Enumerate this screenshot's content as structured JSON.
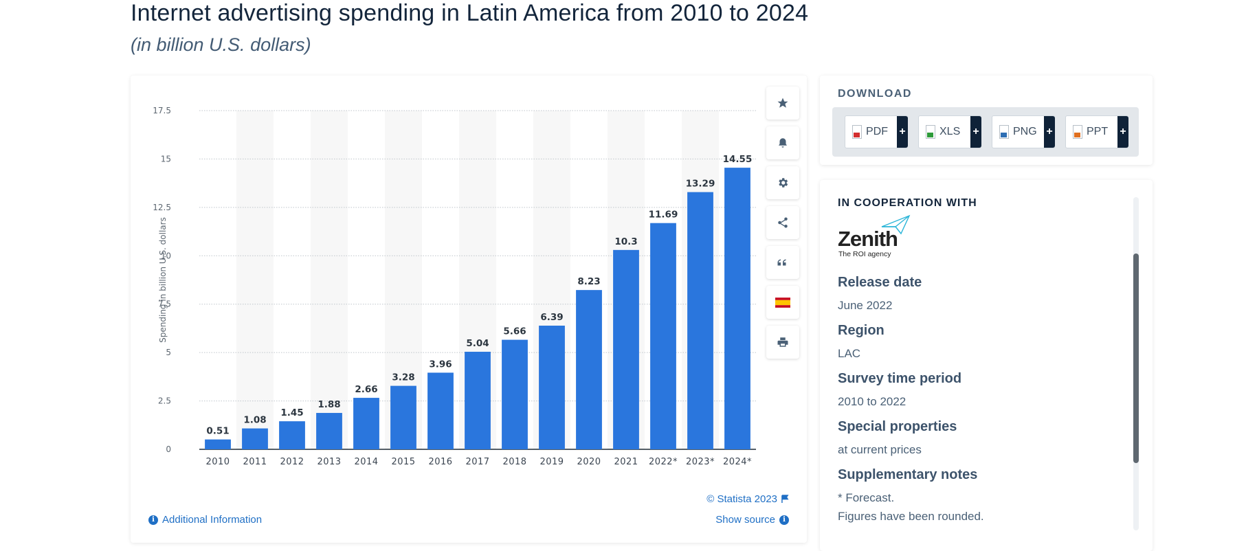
{
  "page": {
    "title": "Internet advertising spending in Latin America from 2010 to 2024",
    "subtitle": "(in billion U.S. dollars)"
  },
  "chart_data": {
    "type": "bar",
    "title": "Internet advertising spending in Latin America from 2010 to 2024",
    "subtitle": "(in billion U.S. dollars)",
    "xlabel": "",
    "ylabel": "Spending in billion U.S. dollars",
    "ylim": [
      0,
      17.5
    ],
    "yticks": [
      "0",
      "2.5",
      "5",
      "7.5",
      "10",
      "12.5",
      "15",
      "17.5"
    ],
    "categories": [
      "2010",
      "2011",
      "2012",
      "2013",
      "2014",
      "2015",
      "2016",
      "2017",
      "2018",
      "2019",
      "2020",
      "2021",
      "2022*",
      "2023*",
      "2024*"
    ],
    "values": [
      0.51,
      1.08,
      1.45,
      1.88,
      2.66,
      3.28,
      3.96,
      5.04,
      5.66,
      6.39,
      8.23,
      10.3,
      11.69,
      13.29,
      14.55
    ],
    "value_labels": [
      "0.51",
      "1.08",
      "1.45",
      "1.88",
      "2.66",
      "3.28",
      "3.96",
      "5.04",
      "5.66",
      "6.39",
      "8.23",
      "10.3",
      "11.69",
      "13.29",
      "14.55"
    ],
    "bar_color": "#2a76dd",
    "grid": true
  },
  "chart_footer": {
    "copyright": "© Statista 2023",
    "additional_info": "Additional Information",
    "show_source": "Show source"
  },
  "toolbar": {
    "buttons": [
      "star-icon",
      "bell-icon",
      "gear-icon",
      "share-icon",
      "quote-icon",
      "flag-es-icon",
      "print-icon"
    ]
  },
  "download": {
    "heading": "DOWNLOAD",
    "formats": [
      {
        "label": "PDF",
        "plus": "+",
        "color": "#d32f2f"
      },
      {
        "label": "XLS",
        "plus": "+",
        "color": "#2e9b3a"
      },
      {
        "label": "PNG",
        "plus": "+",
        "color": "#2f6fb4"
      },
      {
        "label": "PPT",
        "plus": "+",
        "color": "#e07020"
      }
    ]
  },
  "cooperation": {
    "heading": "IN COOPERATION WITH",
    "partner_name": "Zenith",
    "partner_tagline": "The ROI agency"
  },
  "details": [
    {
      "label": "Release date",
      "values": [
        "June 2022"
      ]
    },
    {
      "label": "Region",
      "values": [
        "LAC"
      ]
    },
    {
      "label": "Survey time period",
      "values": [
        "2010 to 2022"
      ]
    },
    {
      "label": "Special properties",
      "values": [
        "at current prices"
      ]
    },
    {
      "label": "Supplementary notes",
      "values": [
        "* Forecast.",
        "Figures have been rounded."
      ]
    }
  ]
}
